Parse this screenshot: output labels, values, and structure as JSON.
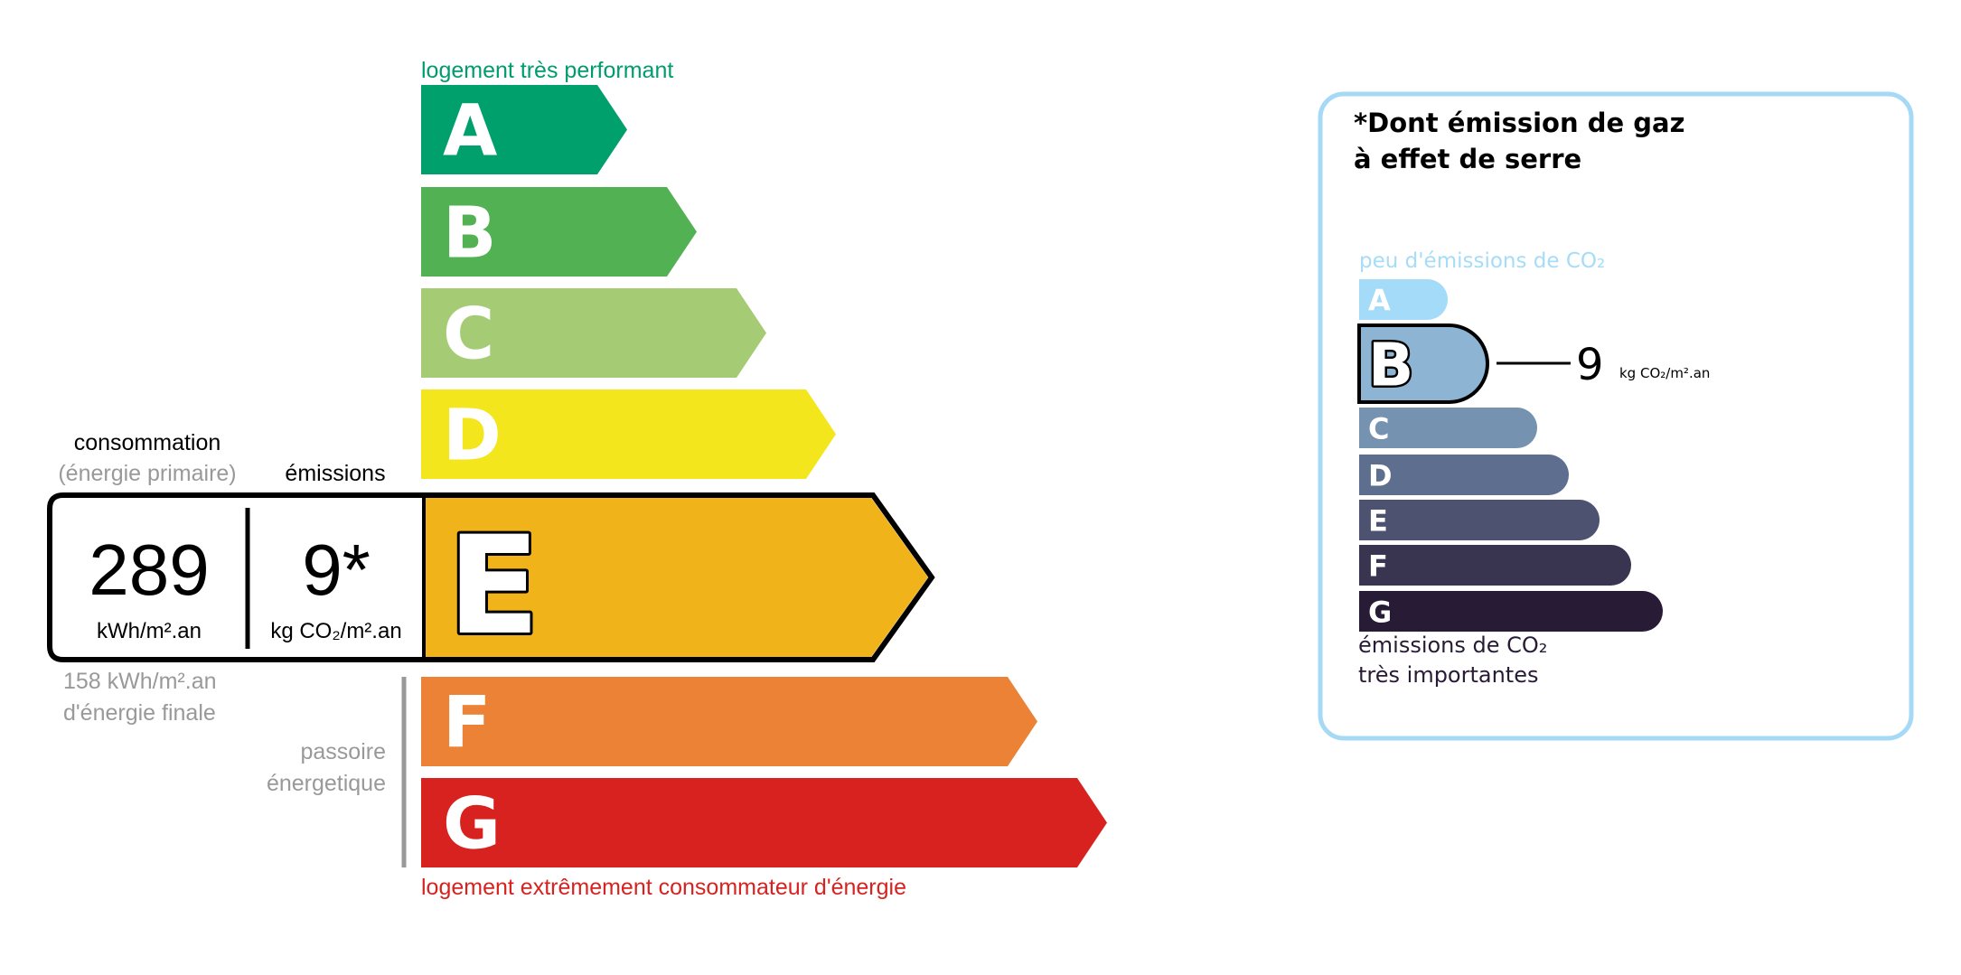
{
  "energy": {
    "top_label": "logement très performant",
    "bottom_label": "logement extrêmement consommateur d'énergie",
    "top_label_color": "#009c6d",
    "bottom_label_color": "#d7221f",
    "classes": [
      {
        "letter": "A",
        "color": "#00a06d"
      },
      {
        "letter": "B",
        "color": "#52b153"
      },
      {
        "letter": "C",
        "color": "#a5cc74"
      },
      {
        "letter": "D",
        "color": "#f4e61c"
      },
      {
        "letter": "E",
        "color": "#f0b41a"
      },
      {
        "letter": "F",
        "color": "#eb8235"
      },
      {
        "letter": "G",
        "color": "#d7221f"
      }
    ],
    "current_class": "E",
    "consumption_label": "consommation",
    "consumption_sublabel": "(énergie primaire)",
    "emissions_label": "émissions",
    "consumption_value": "289",
    "consumption_unit": "kWh/m².an",
    "emissions_value": "9*",
    "emissions_unit": "kg CO₂/m².an",
    "final_energy_value": "158 kWh/m².an",
    "final_energy_label": "d'énergie finale",
    "passoire_line1": "passoire",
    "passoire_line2": "énergetique"
  },
  "ghg": {
    "title_line1": "*Dont émission de gaz",
    "title_line2": "à effet de serre",
    "top_label": "peu d'émissions de CO₂",
    "bottom_label_line1": "émissions de CO₂",
    "bottom_label_line2": "très importantes",
    "border_color": "#a5d9f5",
    "classes": [
      {
        "letter": "A",
        "color": "#a4dbf8"
      },
      {
        "letter": "B",
        "color": "#8db4d3"
      },
      {
        "letter": "C",
        "color": "#7692b1"
      },
      {
        "letter": "D",
        "color": "#5e6e8f"
      },
      {
        "letter": "E",
        "color": "#4d5271"
      },
      {
        "letter": "F",
        "color": "#393551"
      },
      {
        "letter": "G",
        "color": "#281b35"
      }
    ],
    "current_class": "B",
    "value": "9",
    "unit": "kg CO₂/m².an"
  }
}
